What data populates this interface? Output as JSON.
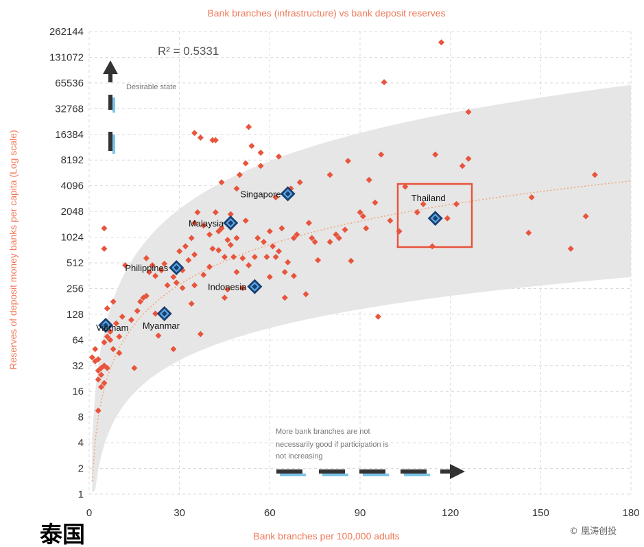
{
  "chart_data": {
    "type": "scatter",
    "title": "Bank branches (infrastructure) vs bank deposit reserves",
    "xlabel": "Bank branches per 100,000 adults",
    "ylabel": "Reserves of deposit money banks per capita (Log scale)",
    "xlim": [
      0,
      180
    ],
    "ylim": [
      1,
      262144
    ],
    "yscale": "log2",
    "xticks": [
      "0",
      "30",
      "60",
      "90",
      "120",
      "150",
      "180"
    ],
    "yticks": [
      "1",
      "2",
      "4",
      "8",
      "16",
      "32",
      "64",
      "128",
      "256",
      "512",
      "1024",
      "2048",
      "4096",
      "8192",
      "16384",
      "32768",
      "65536",
      "131072",
      "262144"
    ],
    "grid": "dashed, both axes",
    "r_squared": "R² = 0.5331",
    "trendline": "logarithmic fit with grey confidence band",
    "highlighted": [
      {
        "label": "Singapore",
        "x": 66,
        "y": 3300
      },
      {
        "label": "Malaysia",
        "x": 47,
        "y": 1500
      },
      {
        "label": "Philippines",
        "x": 29,
        "y": 450
      },
      {
        "label": "Indonesia",
        "x": 55,
        "y": 270
      },
      {
        "label": "Vietnam",
        "x": 5.5,
        "y": 95
      },
      {
        "label": "Myanmar",
        "x": 25,
        "y": 130
      },
      {
        "label": "Thailand",
        "x": 115,
        "y": 1700
      }
    ],
    "points": [
      [
        1,
        40
      ],
      [
        2,
        36
      ],
      [
        2,
        50
      ],
      [
        3,
        38
      ],
      [
        3,
        28
      ],
      [
        3,
        22
      ],
      [
        3,
        9.5
      ],
      [
        4,
        18
      ],
      [
        4,
        25
      ],
      [
        4,
        30
      ],
      [
        5,
        20
      ],
      [
        5,
        32
      ],
      [
        5,
        60
      ],
      [
        6,
        30
      ],
      [
        6,
        70
      ],
      [
        5,
        1300
      ],
      [
        5,
        750
      ],
      [
        6,
        150
      ],
      [
        7,
        64
      ],
      [
        7,
        80
      ],
      [
        8,
        50
      ],
      [
        8,
        180
      ],
      [
        9,
        100
      ],
      [
        10,
        70
      ],
      [
        10,
        45
      ],
      [
        11,
        120
      ],
      [
        12,
        480
      ],
      [
        14,
        110
      ],
      [
        15,
        30
      ],
      [
        16,
        140
      ],
      [
        17,
        180
      ],
      [
        18,
        200
      ],
      [
        19,
        210
      ],
      [
        19,
        580
      ],
      [
        20,
        400
      ],
      [
        21,
        480
      ],
      [
        22,
        130
      ],
      [
        22,
        360
      ],
      [
        23,
        72
      ],
      [
        24,
        420
      ],
      [
        25,
        500
      ],
      [
        26,
        280
      ],
      [
        28,
        350
      ],
      [
        28,
        50
      ],
      [
        29,
        300
      ],
      [
        30,
        700
      ],
      [
        31,
        420
      ],
      [
        31,
        260
      ],
      [
        32,
        800
      ],
      [
        33,
        550
      ],
      [
        34,
        170
      ],
      [
        34,
        1000
      ],
      [
        35,
        640
      ],
      [
        35,
        1500
      ],
      [
        35,
        280
      ],
      [
        35,
        17000
      ],
      [
        36,
        2000
      ],
      [
        37,
        75
      ],
      [
        37,
        15000
      ],
      [
        38,
        370
      ],
      [
        38,
        1400
      ],
      [
        40,
        1100
      ],
      [
        40,
        460
      ],
      [
        41,
        750
      ],
      [
        41,
        14000
      ],
      [
        42,
        2000
      ],
      [
        42,
        14000
      ],
      [
        43,
        720
      ],
      [
        43,
        1200
      ],
      [
        44,
        1300
      ],
      [
        44,
        4500
      ],
      [
        45,
        200
      ],
      [
        45,
        600
      ],
      [
        46,
        250
      ],
      [
        46,
        950
      ],
      [
        47,
        830
      ],
      [
        47,
        1900
      ],
      [
        48,
        600
      ],
      [
        49,
        400
      ],
      [
        49,
        1000
      ],
      [
        49,
        3800
      ],
      [
        50,
        5500
      ],
      [
        51,
        260
      ],
      [
        51,
        580
      ],
      [
        52,
        1600
      ],
      [
        52,
        7500
      ],
      [
        53,
        20000
      ],
      [
        53,
        480
      ],
      [
        54,
        12000
      ],
      [
        55,
        600
      ],
      [
        56,
        260
      ],
      [
        56,
        1000
      ],
      [
        57,
        7000
      ],
      [
        57,
        10000
      ],
      [
        58,
        900
      ],
      [
        59,
        600
      ],
      [
        60,
        350
      ],
      [
        60,
        1200
      ],
      [
        61,
        800
      ],
      [
        62,
        600
      ],
      [
        62,
        3000
      ],
      [
        63,
        700
      ],
      [
        63,
        9000
      ],
      [
        64,
        1300
      ],
      [
        65,
        400
      ],
      [
        65,
        200
      ],
      [
        66,
        520
      ],
      [
        67,
        3800
      ],
      [
        68,
        1000
      ],
      [
        68,
        360
      ],
      [
        69,
        1100
      ],
      [
        70,
        4500
      ],
      [
        72,
        220
      ],
      [
        73,
        1500
      ],
      [
        73,
        1500
      ],
      [
        74,
        1000
      ],
      [
        75,
        900
      ],
      [
        76,
        550
      ],
      [
        80,
        5500
      ],
      [
        80,
        900
      ],
      [
        82,
        1100
      ],
      [
        83,
        1000
      ],
      [
        85,
        1250
      ],
      [
        86,
        8000
      ],
      [
        87,
        540
      ],
      [
        90,
        2000
      ],
      [
        91,
        1800
      ],
      [
        92,
        1300
      ],
      [
        93,
        4800
      ],
      [
        95,
        2600
      ],
      [
        96,
        120
      ],
      [
        97,
        9500
      ],
      [
        98,
        67000
      ],
      [
        100,
        1600
      ],
      [
        103,
        1200
      ],
      [
        105,
        4000
      ],
      [
        109,
        2000
      ],
      [
        111,
        2500
      ],
      [
        114,
        800
      ],
      [
        115,
        9500
      ],
      [
        117,
        196000
      ],
      [
        119,
        1700
      ],
      [
        122,
        2500
      ],
      [
        124,
        7000
      ],
      [
        126,
        8500
      ],
      [
        126,
        30000
      ],
      [
        146,
        1150
      ],
      [
        147,
        3000
      ],
      [
        160,
        750
      ],
      [
        165,
        1800
      ],
      [
        168,
        5500
      ]
    ]
  },
  "annotations": {
    "r2": "R² = 0.5331",
    "desirable": "Desirable state",
    "note_line1": "More bank branches are not",
    "note_line2": "necessarily good if participation is",
    "note_line3": "not increasing"
  },
  "caption": "泰国",
  "watermark": "©⁠ 凰涛创投",
  "colors": {
    "accent": "#f07a5a",
    "point": "#e8543c",
    "band": "#e6e6e6",
    "box": "#e8543c",
    "marker": "#1a3f73",
    "marker_inner": "#5aa9e6"
  }
}
